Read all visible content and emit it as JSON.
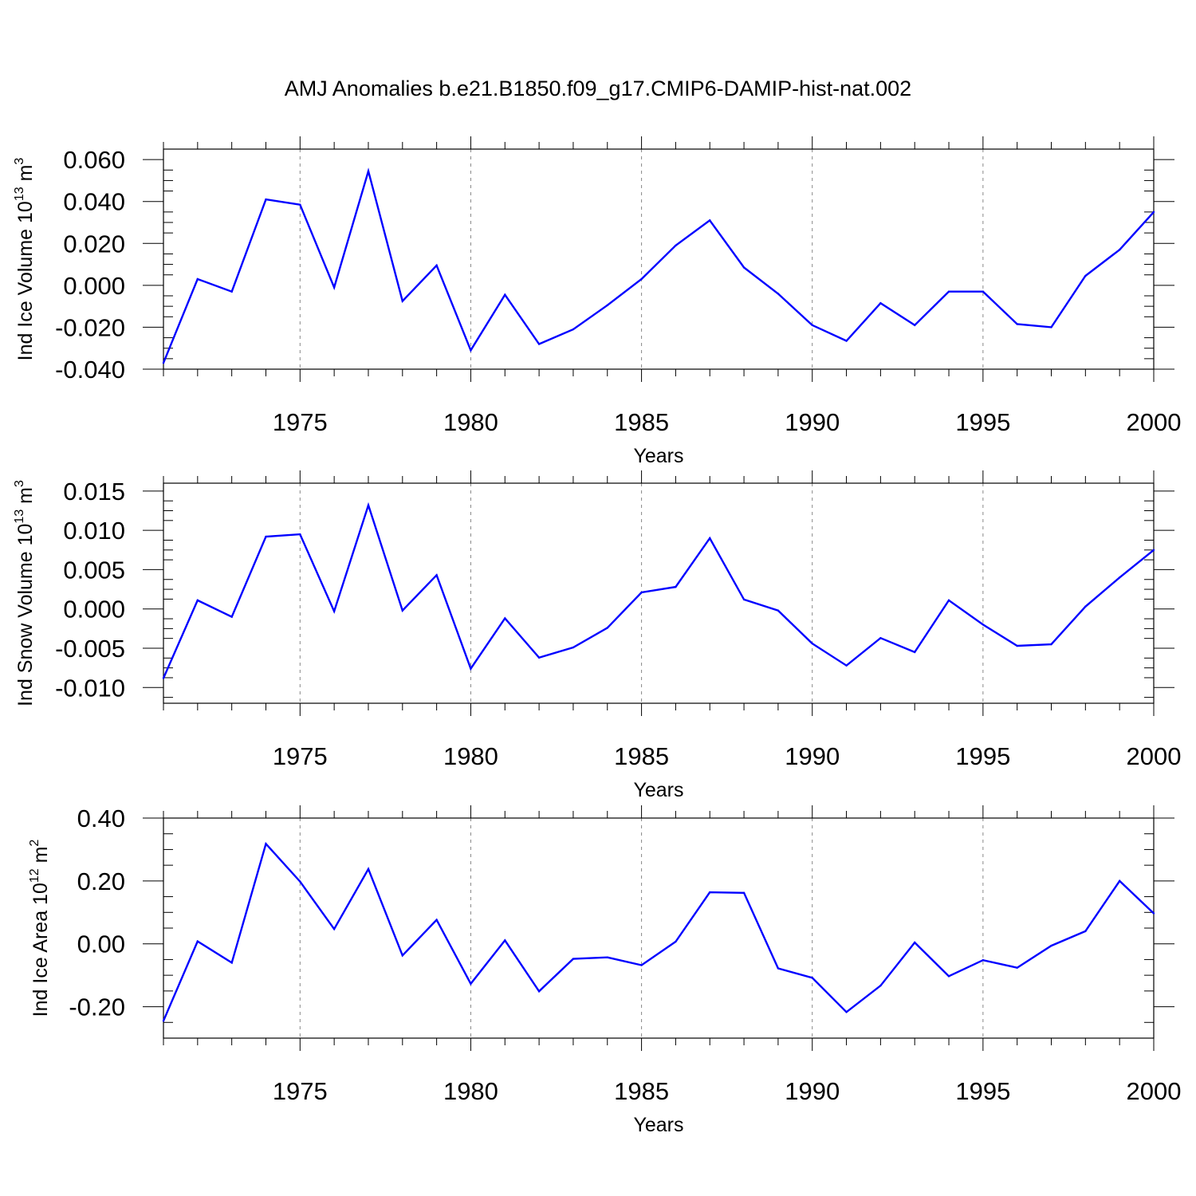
{
  "title": "AMJ Anomalies b.e21.B1850.f09_g17.CMIP6-DAMIP-hist-nat.002",
  "colors": {
    "line": "#0000ff",
    "axis": "#000000",
    "grid": "#888888"
  },
  "chart_data": [
    {
      "type": "line",
      "xlabel": "Years",
      "ylabel": {
        "main": "Ind Ice Volume 10",
        "exp": "13",
        "unit": " m",
        "unit_exp": "3"
      },
      "xlim": [
        1971,
        2000
      ],
      "ylim": [
        -0.04,
        0.065
      ],
      "xticks": [
        1975,
        1980,
        1985,
        1990,
        1995,
        2000
      ],
      "xtick_labels": [
        "1975",
        "1980",
        "1985",
        "1990",
        "1995",
        "2000"
      ],
      "yticks": [
        -0.04,
        -0.02,
        0.0,
        0.02,
        0.04,
        0.06
      ],
      "ytick_labels": [
        "-0.040",
        "-0.020",
        "0.000",
        "0.020",
        "0.040",
        "0.060"
      ],
      "grid": "vertical dashed at major x ticks",
      "x": [
        1971,
        1972,
        1973,
        1974,
        1975,
        1976,
        1977,
        1978,
        1979,
        1980,
        1981,
        1982,
        1983,
        1984,
        1985,
        1986,
        1987,
        1988,
        1989,
        1990,
        1991,
        1992,
        1993,
        1994,
        1995,
        1996,
        1997,
        1998,
        1999,
        2000
      ],
      "series": [
        {
          "values": [
            -0.037,
            0.003,
            -0.003,
            0.041,
            0.0385,
            -0.001,
            0.0545,
            -0.0075,
            0.0095,
            -0.031,
            -0.0045,
            -0.028,
            -0.021,
            -0.0095,
            0.003,
            0.019,
            0.031,
            0.0085,
            -0.004,
            -0.019,
            -0.0265,
            -0.0085,
            -0.019,
            -0.003,
            -0.003,
            -0.0185,
            -0.02,
            0.0045,
            0.017,
            0.035
          ]
        }
      ]
    },
    {
      "type": "line",
      "xlabel": "Years",
      "ylabel": {
        "main": "Ind Snow Volume 10",
        "exp": "13",
        "unit": " m",
        "unit_exp": "3"
      },
      "xlim": [
        1971,
        2000
      ],
      "ylim": [
        -0.012,
        0.016
      ],
      "xticks": [
        1975,
        1980,
        1985,
        1990,
        1995,
        2000
      ],
      "xtick_labels": [
        "1975",
        "1980",
        "1985",
        "1990",
        "1995",
        "2000"
      ],
      "yticks": [
        -0.01,
        -0.005,
        0.0,
        0.005,
        0.01,
        0.015
      ],
      "ytick_labels": [
        "-0.010",
        "-0.005",
        "0.000",
        "0.005",
        "0.010",
        "0.015"
      ],
      "grid": "vertical dashed at major x ticks",
      "x": [
        1971,
        1972,
        1973,
        1974,
        1975,
        1976,
        1977,
        1978,
        1979,
        1980,
        1981,
        1982,
        1983,
        1984,
        1985,
        1986,
        1987,
        1988,
        1989,
        1990,
        1991,
        1992,
        1993,
        1994,
        1995,
        1996,
        1997,
        1998,
        1999,
        2000
      ],
      "series": [
        {
          "values": [
            -0.0088,
            0.0011,
            -0.001,
            0.0092,
            0.0095,
            -0.0003,
            0.0132,
            -0.0002,
            0.0043,
            -0.0076,
            -0.0012,
            -0.0062,
            -0.0049,
            -0.0024,
            0.0021,
            0.0028,
            0.009,
            0.0012,
            -0.0002,
            -0.0044,
            -0.0072,
            -0.0037,
            -0.0055,
            0.0011,
            -0.002,
            -0.0047,
            -0.0045,
            0.0003,
            0.004,
            0.0075
          ]
        }
      ]
    },
    {
      "type": "line",
      "xlabel": "Years",
      "ylabel": {
        "main": "Ind Ice Area 10",
        "exp": "12",
        "unit": " m",
        "unit_exp": "2"
      },
      "xlim": [
        1971,
        2000
      ],
      "ylim": [
        -0.3,
        0.4
      ],
      "xticks": [
        1975,
        1980,
        1985,
        1990,
        1995,
        2000
      ],
      "xtick_labels": [
        "1975",
        "1980",
        "1985",
        "1990",
        "1995",
        "2000"
      ],
      "yticks": [
        -0.2,
        0.0,
        0.2,
        0.4
      ],
      "ytick_labels": [
        "-0.20",
        "0.00",
        "0.20",
        "0.40"
      ],
      "grid": "vertical dashed at major x ticks",
      "x": [
        1971,
        1972,
        1973,
        1974,
        1975,
        1976,
        1977,
        1978,
        1979,
        1980,
        1981,
        1982,
        1983,
        1984,
        1985,
        1986,
        1987,
        1988,
        1989,
        1990,
        1991,
        1992,
        1993,
        1994,
        1995,
        1996,
        1997,
        1998,
        1999,
        2000
      ],
      "series": [
        {
          "values": [
            -0.245,
            0.008,
            -0.06,
            0.318,
            0.198,
            0.047,
            0.238,
            -0.037,
            0.076,
            -0.127,
            0.011,
            -0.151,
            -0.048,
            -0.043,
            -0.068,
            0.007,
            0.164,
            0.162,
            -0.078,
            -0.108,
            -0.217,
            -0.133,
            0.004,
            -0.103,
            -0.052,
            -0.076,
            -0.006,
            0.04,
            0.2,
            0.097
          ]
        }
      ]
    }
  ]
}
